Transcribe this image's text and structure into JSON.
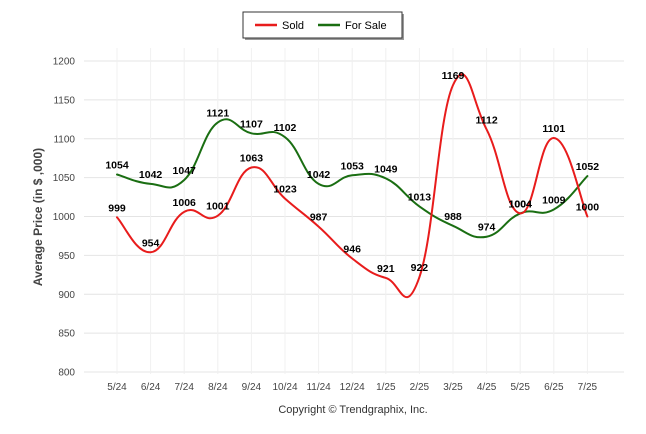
{
  "chart_data": {
    "type": "line",
    "categories": [
      "5/24",
      "6/24",
      "7/24",
      "8/24",
      "9/24",
      "10/24",
      "11/24",
      "12/24",
      "1/25",
      "2/25",
      "3/25",
      "4/25",
      "5/25",
      "6/25",
      "7/25"
    ],
    "series": [
      {
        "name": "Sold",
        "color": "#e81c1c",
        "values": [
          999,
          954,
          1006,
          1001,
          1063,
          1023,
          987,
          946,
          921,
          922,
          1169,
          1112,
          1004,
          1101,
          1000
        ]
      },
      {
        "name": "For Sale",
        "color": "#1a6e12",
        "values": [
          1054,
          1042,
          1047,
          1121,
          1107,
          1102,
          1042,
          1053,
          1049,
          1013,
          988,
          974,
          1004,
          1009,
          1052
        ]
      }
    ],
    "yticks": [
      800,
      850,
      900,
      950,
      1000,
      1050,
      1100,
      1150,
      1200
    ],
    "ylim": [
      800,
      1200
    ],
    "xlabel": "",
    "ylabel": "Average Price (in $ ,000)",
    "grid": true,
    "legend_position": "top-center",
    "credit": "Copyright © Trendgraphix, Inc."
  }
}
